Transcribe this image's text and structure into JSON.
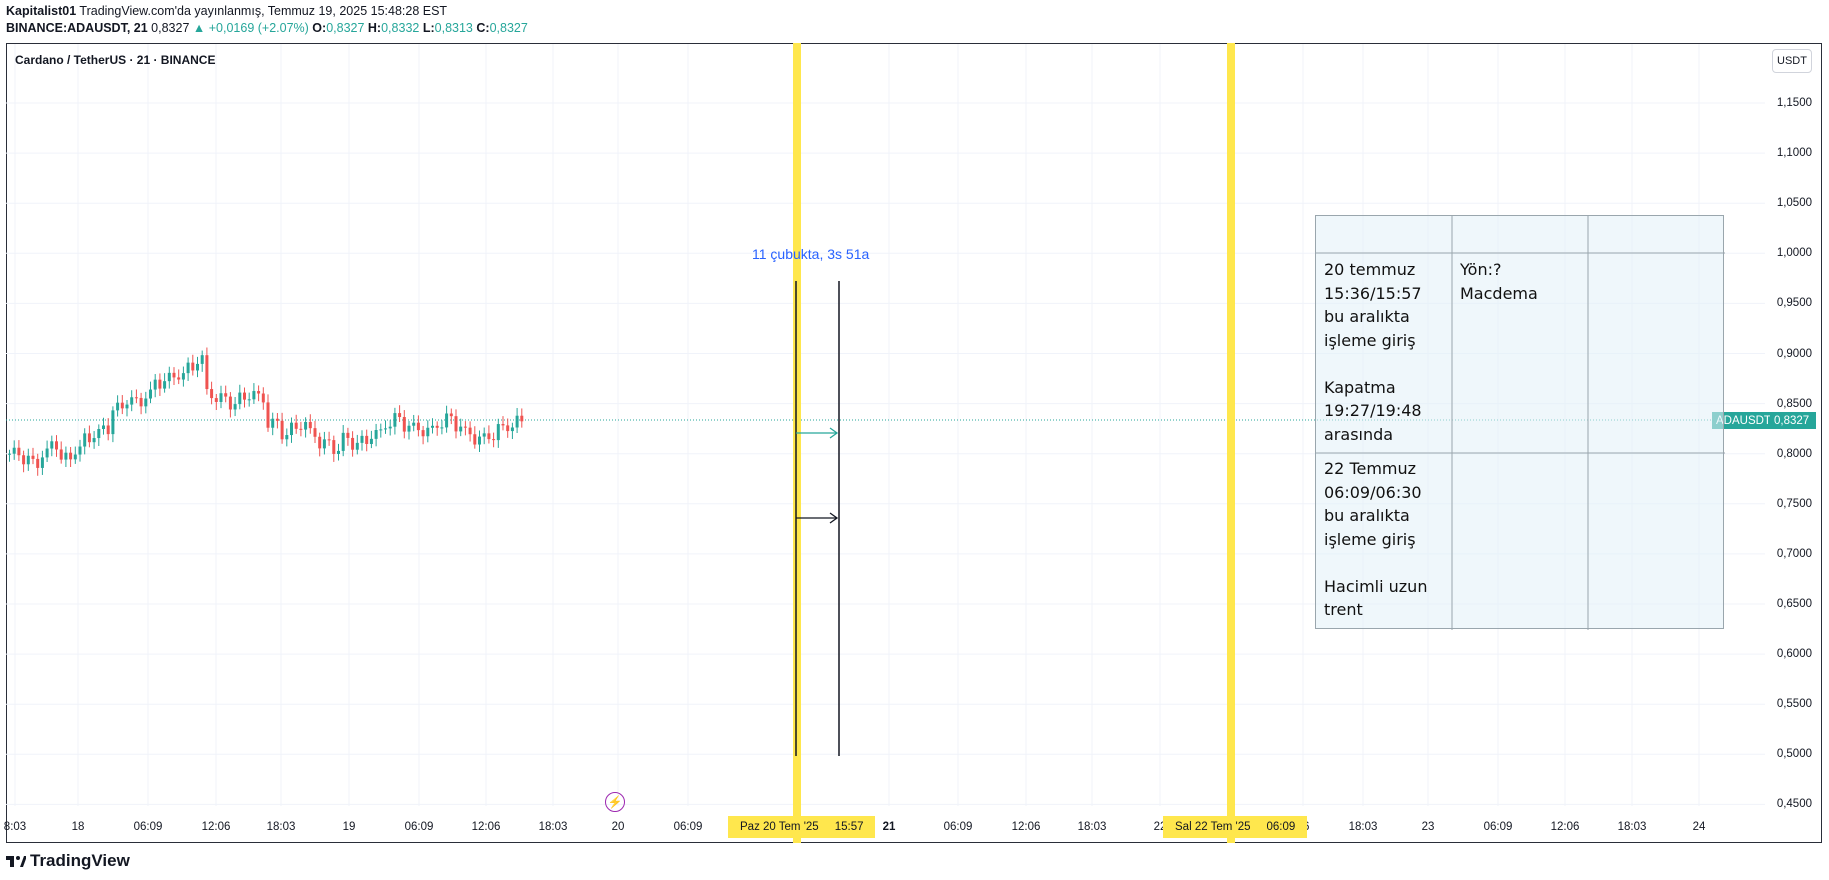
{
  "header": {
    "publisher": "Kapitalist01",
    "published_text": "TradingView.com'da yayınlanmış, Temmuz 19, 2025 15:48:28 EST",
    "symbol": "BINANCE:ADAUSDT, 21",
    "last": "0,8327",
    "change": "▲ +0,0169 (+2.07%)",
    "o_label": "O:",
    "o_val": "0,8327",
    "h_label": "H:",
    "h_val": "0,8332",
    "l_label": "L:",
    "l_val": "0,8313",
    "c_label": "C:",
    "c_val": "0,8327"
  },
  "chart": {
    "title": "Cardano / TetherUS · 21 · BINANCE",
    "currency": "USDT",
    "symbol_tag": "ADAUSDT",
    "price_tag": "0,8327",
    "price_axis": [
      "1,1500",
      "1,1000",
      "1,0500",
      "1,0000",
      "0,9500",
      "0,9000",
      "0,8500",
      "0,8000",
      "0,7500",
      "0,7000",
      "0,6500",
      "0,6000",
      "0,5500",
      "0,5000",
      "0,4500"
    ],
    "time_axis": [
      "8:03",
      "18",
      "06:09",
      "12:06",
      "18:03",
      "19",
      "06:09",
      "12:06",
      "18:03",
      "20",
      "06:09",
      "21",
      "06:09",
      "12:06",
      "18:03",
      "22",
      "06",
      "18:03",
      "23",
      "06:09",
      "12:06",
      "18:03",
      "24"
    ],
    "highlight_label_1_date": "Paz 20 Tem '25",
    "highlight_label_1_time": "15:57",
    "highlight_label_2_date": "Sal 22 Tem '25",
    "highlight_label_2_time": "06:09",
    "bars_measure": "11 çubukta, 3s 51a",
    "colors": {
      "up": "#26a69a",
      "down": "#ef5350",
      "highlight": "#ffe74d",
      "measure": "#2962ff"
    }
  },
  "note_table": {
    "cell_1": "20 temmuz\n15:36/15:57\nbu aralıkta\nişleme giriş\n\nKapatma\n19:27/19:48\narasında",
    "cell_2": "Yön:?\nMacdema",
    "cell_3": "22 Temmuz\n06:09/06:30\nbu aralıkta\nişleme giriş\n\nHacimli uzun\ntrent"
  },
  "footer": {
    "logo_text": "TradingView"
  }
}
